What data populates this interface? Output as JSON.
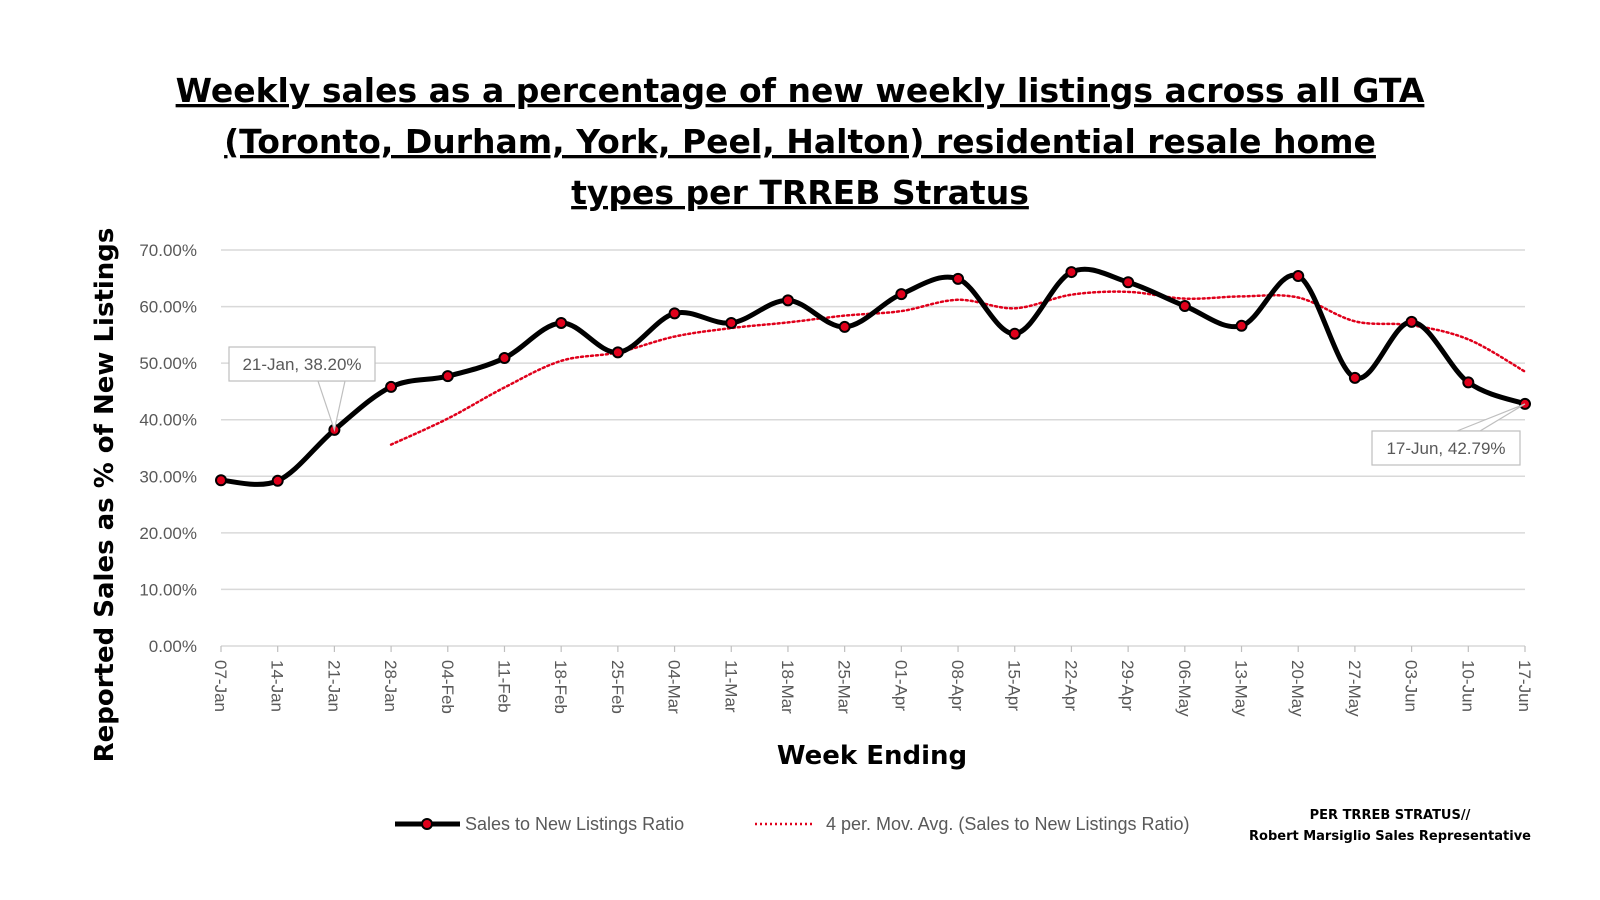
{
  "chart_data": {
    "type": "line",
    "title_lines": [
      "Weekly sales as a percentage of new weekly listings across all GTA",
      "(Toronto, Durham, York, Peel, Halton) residential resale home",
      "types per TRREB Stratus"
    ],
    "xlabel": "Week Ending",
    "ylabel": "Reported Sales as % of New Listings",
    "ylim": [
      0,
      70
    ],
    "y_ticks": [
      "0.00%",
      "10.00%",
      "20.00%",
      "30.00%",
      "40.00%",
      "50.00%",
      "60.00%",
      "70.00%"
    ],
    "y_tick_values": [
      0,
      10,
      20,
      30,
      40,
      50,
      60,
      70
    ],
    "grid": true,
    "categories": [
      "07-Jan",
      "14-Jan",
      "21-Jan",
      "28-Jan",
      "04-Feb",
      "11-Feb",
      "18-Feb",
      "25-Feb",
      "04-Mar",
      "11-Mar",
      "18-Mar",
      "25-Mar",
      "01-Apr",
      "08-Apr",
      "15-Apr",
      "22-Apr",
      "29-Apr",
      "06-May",
      "13-May",
      "20-May",
      "27-May",
      "03-Jun",
      "10-Jun",
      "17-Jun"
    ],
    "series": [
      {
        "name": "Sales to New Listings Ratio",
        "color": "#000000",
        "marker_color": "#e0001b",
        "values": [
          29.3,
          29.2,
          38.2,
          45.8,
          47.7,
          50.9,
          57.1,
          51.9,
          58.8,
          57.1,
          61.1,
          56.4,
          62.2,
          64.9,
          55.2,
          66.1,
          64.3,
          60.1,
          56.6,
          65.4,
          47.4,
          57.3,
          46.6,
          42.79
        ]
      },
      {
        "name": "4 per. Mov. Avg. (Sales to New Listings Ratio)",
        "color": "#e0001b",
        "style": "dotted",
        "values": [
          null,
          null,
          null,
          35.6,
          40.2,
          45.7,
          50.4,
          51.9,
          54.7,
          56.2,
          57.2,
          58.4,
          59.2,
          61.2,
          59.7,
          62.1,
          62.6,
          61.4,
          61.8,
          61.6,
          57.4,
          56.7,
          54.2,
          48.5
        ]
      }
    ],
    "annotations": [
      {
        "text": "21-Jan, 38.20%",
        "index": 2
      },
      {
        "text": "17-Jun, 42.79%",
        "index": 23
      }
    ],
    "legend_position": "bottom"
  },
  "credit": {
    "line1": "PER TRREB  STRATUS//",
    "line2": "Robert Marsiglio Sales Representative"
  }
}
